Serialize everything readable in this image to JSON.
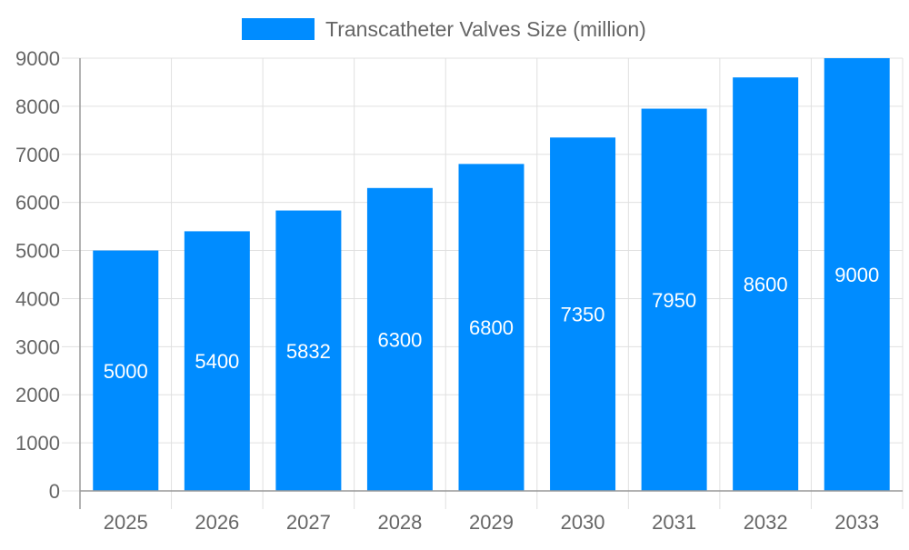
{
  "chart_data": {
    "type": "bar",
    "title": "",
    "xlabel": "",
    "ylabel": "",
    "categories": [
      "2025",
      "2026",
      "2027",
      "2028",
      "2029",
      "2030",
      "2031",
      "2032",
      "2033"
    ],
    "series": [
      {
        "name": "Transcatheter Valves Size (million)",
        "values": [
          5000,
          5400,
          5832,
          6300,
          6800,
          7350,
          7950,
          8600,
          9000
        ],
        "color": "#008cff"
      }
    ],
    "ylim": [
      0,
      9000
    ],
    "yticks": [
      0,
      1000,
      2000,
      3000,
      4000,
      5000,
      6000,
      7000,
      8000,
      9000
    ],
    "grid": true,
    "legend_position": "top-center",
    "data_labels": true
  }
}
